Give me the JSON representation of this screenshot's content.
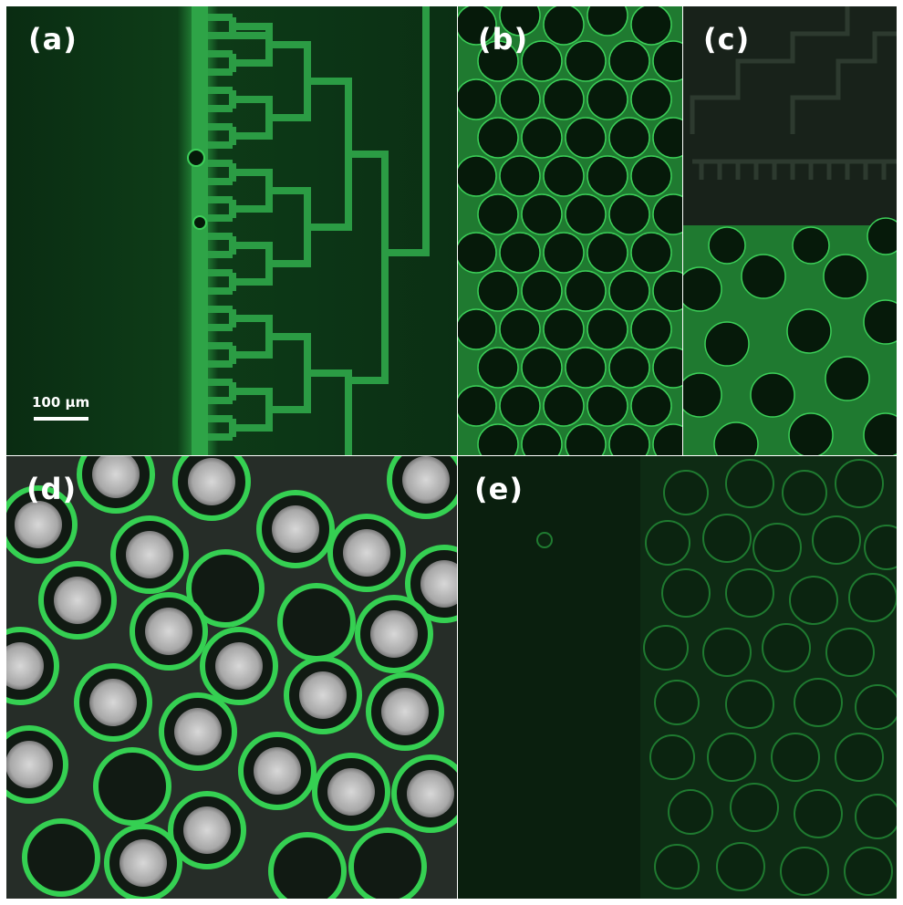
{
  "figure": {
    "panels": [
      {
        "id": "a",
        "label": "(a)",
        "description_tag": "microfluidic-tree-channel"
      },
      {
        "id": "b",
        "label": "(b)",
        "description_tag": "packed-droplets-fluorescent"
      },
      {
        "id": "c",
        "label": "(c)",
        "description_tag": "droplets-at-channel-outlet"
      },
      {
        "id": "d",
        "label": "(d)",
        "description_tag": "core-shell-microcapsules"
      },
      {
        "id": "e",
        "label": "(e)",
        "description_tag": "dim-droplet-front"
      }
    ],
    "scale_bar": {
      "text": "100 µm"
    },
    "colors": {
      "background_dark": "#0b2a12",
      "fluorescence": "#2fbf4a",
      "fluorescence_bright": "#5cf07a",
      "core_gray": "#bdbdbd",
      "label": "#ffffff"
    }
  }
}
